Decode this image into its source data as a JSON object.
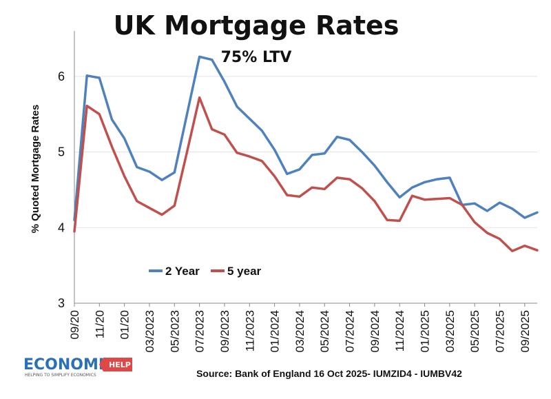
{
  "chart_data": {
    "type": "line",
    "title": "UK Mortgage Rates",
    "subtitle": "75% LTV",
    "xlabel": "",
    "ylabel": "% Quoted Mortgage Rates",
    "ylim": [
      3,
      6.6
    ],
    "yticks": [
      3,
      4,
      5,
      6
    ],
    "grid": true,
    "legend_position": "bottom-left",
    "x": [
      "09/2022",
      "10/2022",
      "11/2022",
      "12/2022",
      "01/2023",
      "02/2023",
      "03/2023",
      "04/2023",
      "05/2023",
      "06/2023",
      "07/2023",
      "08/2023",
      "09/2023",
      "10/2023",
      "11/2023",
      "12/2023",
      "01/2024",
      "02/2024",
      "03/2024",
      "04/2024",
      "05/2024",
      "06/2024",
      "07/2024",
      "08/2024",
      "09/2024",
      "10/2024",
      "11/2024",
      "12/2024",
      "01/2025",
      "02/2025",
      "03/2025",
      "04/2025",
      "05/2025",
      "06/2025",
      "07/2025",
      "08/2025",
      "09/2025",
      "10/2025"
    ],
    "x_tick_labels": [
      "09/20",
      "11/20",
      "01/20",
      "03/2023",
      "05/2023",
      "07/2023",
      "09/2023",
      "11/2023",
      "01/2024",
      "03/2024",
      "05/2024",
      "07/2024",
      "09/2024",
      "11/2024",
      "01/2025",
      "03/2025",
      "05/2025",
      "07/2025",
      "09/2025"
    ],
    "series": [
      {
        "name": "2 Year",
        "color": "#4f81bd",
        "values": [
          4.1,
          6.01,
          5.98,
          5.43,
          5.18,
          4.8,
          4.74,
          4.63,
          4.73,
          5.5,
          6.26,
          6.22,
          5.93,
          5.6,
          5.44,
          5.28,
          5.03,
          4.71,
          4.77,
          4.96,
          4.98,
          5.2,
          5.16,
          5.0,
          4.82,
          4.6,
          4.4,
          4.53,
          4.6,
          4.64,
          4.66,
          4.3,
          4.32,
          4.22,
          4.33,
          4.25,
          4.13,
          4.2
        ]
      },
      {
        "name": "5 year",
        "color": "#c0504d",
        "values": [
          3.95,
          5.61,
          5.5,
          5.07,
          4.68,
          4.35,
          4.26,
          4.17,
          4.29,
          5.0,
          5.72,
          5.3,
          5.23,
          4.99,
          4.94,
          4.88,
          4.68,
          4.43,
          4.41,
          4.53,
          4.51,
          4.66,
          4.64,
          4.52,
          4.35,
          4.1,
          4.09,
          4.42,
          4.37,
          4.38,
          4.39,
          4.3,
          4.07,
          3.93,
          3.85,
          3.69,
          3.76,
          3.7
        ]
      }
    ]
  },
  "footer": {
    "source": "Source: Bank of England 16 Oct 2025- IUMZID4 - IUMBV42",
    "logo_main": "ECONOMICS",
    "logo_help": "HELP",
    "logo_tagline": "HELPING TO SIMPLIFY ECONOMICS"
  }
}
